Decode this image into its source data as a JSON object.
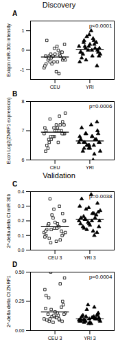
{
  "chart_data": [
    {
      "type": "scatter",
      "panel": "A",
      "title": "Discovery",
      "ylabel": "Exiqon miR-30b intensity",
      "annotation": "p<0.0001",
      "ylim": [
        -1.5,
        1.5
      ],
      "yticks": [
        -1,
        0,
        1
      ],
      "series": [
        {
          "name": "CEU",
          "color": "#000000",
          "marker": "open_square",
          "mean": -0.35,
          "values": [
            -0.9,
            -0.6,
            -0.3,
            -0.5,
            0.1,
            -0.7,
            -0.2,
            -0.4,
            0.3,
            -1.1,
            -0.5,
            -0.1,
            -0.3,
            -0.8,
            0.0,
            -0.6,
            -0.4,
            -0.2,
            0.5,
            -0.3,
            -0.7,
            -0.5,
            0.2,
            -0.4,
            -0.1,
            -0.6,
            -0.3,
            -1.2,
            -0.2,
            -0.4
          ]
        },
        {
          "name": "YRI",
          "color": "#000000",
          "marker": "triangle",
          "mean": 0.05,
          "values": [
            0.2,
            -0.3,
            0.5,
            0.0,
            0.8,
            -0.1,
            0.3,
            -0.5,
            0.1,
            1.0,
            -0.2,
            0.4,
            0.0,
            -0.6,
            0.6,
            0.2,
            -0.1,
            0.3,
            -0.4,
            0.1,
            0.7,
            -0.2,
            0.0,
            0.4,
            -0.8,
            0.2,
            -0.1,
            0.5,
            0.1,
            -0.3
          ]
        }
      ]
    },
    {
      "type": "scatter",
      "panel": "B",
      "ylabel": "Exon Log2(ZNRF1 expression)",
      "annotation": "p=0.0006",
      "ylim": [
        6,
        8
      ],
      "yticks": [
        6,
        7,
        8
      ],
      "series": [
        {
          "name": "CEU",
          "color": "#000000",
          "marker": "open_square",
          "mean": 6.95,
          "values": [
            6.9,
            7.1,
            6.6,
            7.3,
            6.8,
            7.0,
            7.5,
            6.7,
            6.9,
            7.2,
            6.4,
            7.0,
            6.8,
            7.1,
            6.6,
            7.4,
            6.9,
            7.0,
            6.5,
            7.2,
            6.8,
            7.6,
            7.0,
            6.7,
            6.9,
            7.1,
            6.3,
            7.0,
            6.8,
            7.2
          ]
        },
        {
          "name": "YRI",
          "color": "#000000",
          "marker": "triangle",
          "mean": 6.65,
          "values": [
            6.6,
            6.8,
            6.4,
            7.0,
            6.5,
            6.7,
            6.2,
            6.9,
            6.6,
            7.2,
            6.3,
            6.7,
            6.5,
            6.8,
            6.0,
            6.6,
            6.9,
            6.4,
            7.1,
            6.7,
            6.5,
            6.3,
            6.8,
            6.6,
            7.3,
            6.4,
            6.7,
            6.5,
            6.9,
            6.6
          ]
        }
      ]
    },
    {
      "type": "scatter",
      "panel": "C",
      "title": "Validation",
      "ylabel": "2^-delta delta Ct miR 30b",
      "annotation": "p=0.0038",
      "ylim": [
        0,
        0.4
      ],
      "yticks": [
        {
          "value": 0,
          "label": "0.0"
        },
        0.1,
        0.2,
        0.3,
        0.4
      ],
      "series": [
        {
          "name": "CEU 3",
          "color": "#000000",
          "marker": "open_square",
          "mean": 0.16,
          "values": [
            0.12,
            0.18,
            0.08,
            0.25,
            0.15,
            0.1,
            0.3,
            0.14,
            0.2,
            0.06,
            0.17,
            0.13,
            0.22,
            0.09,
            0.16,
            0.35,
            0.11,
            0.19,
            0.14,
            0.07,
            0.24,
            0.12,
            0.15,
            0.18,
            0.1,
            0.28,
            0.13,
            0.16,
            0.05,
            0.2
          ]
        },
        {
          "name": "YRI 3",
          "color": "#000000",
          "marker": "triangle",
          "mean": 0.21,
          "values": [
            0.2,
            0.25,
            0.15,
            0.32,
            0.18,
            0.22,
            0.1,
            0.28,
            0.2,
            0.38,
            0.16,
            0.24,
            0.19,
            0.3,
            0.13,
            0.21,
            0.26,
            0.17,
            0.35,
            0.22,
            0.14,
            0.27,
            0.2,
            0.23,
            0.12,
            0.29,
            0.18,
            0.25,
            0.21,
            0.16
          ]
        }
      ]
    },
    {
      "type": "scatter",
      "panel": "D",
      "ylabel": "2^-delta delta Ct ZNRF1",
      "annotation": "p=0.0004",
      "ylim": [
        0,
        0.5
      ],
      "yticks": [
        {
          "value": 0,
          "label": "0.00"
        },
        0.25,
        {
          "value": 0.5,
          "label": "0.50"
        }
      ],
      "series": [
        {
          "name": "CEU 3",
          "color": "#000000",
          "marker": "open_square",
          "mean": 0.16,
          "values": [
            0.1,
            0.15,
            0.08,
            0.25,
            0.12,
            0.3,
            0.09,
            0.18,
            0.45,
            0.11,
            0.14,
            0.2,
            0.07,
            0.35,
            0.13,
            0.1,
            0.22,
            0.16,
            0.09,
            0.4,
            0.12,
            0.15,
            0.11,
            0.28,
            0.08,
            0.13,
            0.19,
            0.1,
            0.5,
            0.14
          ]
        },
        {
          "name": "YRI 3",
          "color": "#000000",
          "marker": "triangle",
          "mean": 0.1,
          "values": [
            0.09,
            0.11,
            0.07,
            0.14,
            0.1,
            0.08,
            0.2,
            0.12,
            0.09,
            0.06,
            0.13,
            0.1,
            0.22,
            0.08,
            0.11,
            0.09,
            0.15,
            0.07,
            0.12,
            0.1,
            0.18,
            0.08,
            0.11,
            0.09,
            0.13,
            0.06,
            0.1,
            0.12,
            0.08,
            0.11
          ]
        }
      ]
    }
  ]
}
